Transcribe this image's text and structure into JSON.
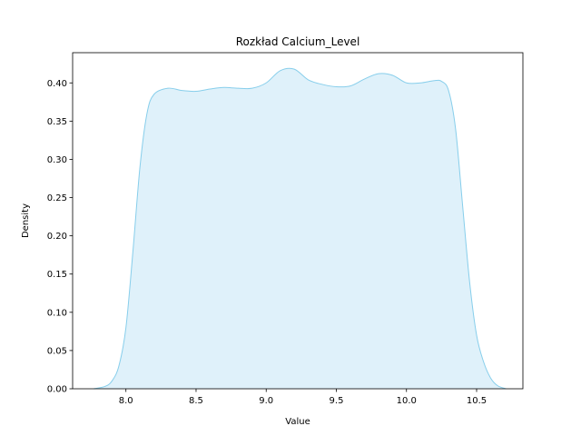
{
  "chart_data": {
    "type": "area",
    "title": "Rozkład Calcium_Level",
    "xlabel": "Value",
    "ylabel": "Density",
    "xlim": [
      7.62,
      10.83
    ],
    "ylim": [
      0,
      0.4395
    ],
    "x_ticks": [
      {
        "value": 8.0,
        "label": "8.0"
      },
      {
        "value": 8.5,
        "label": "8.5"
      },
      {
        "value": 9.0,
        "label": "9.0"
      },
      {
        "value": 9.5,
        "label": "9.5"
      },
      {
        "value": 10.0,
        "label": "10.0"
      },
      {
        "value": 10.5,
        "label": "10.5"
      }
    ],
    "y_ticks": [
      {
        "value": 0.0,
        "label": "0.00"
      },
      {
        "value": 0.05,
        "label": "0.05"
      },
      {
        "value": 0.1,
        "label": "0.10"
      },
      {
        "value": 0.15,
        "label": "0.15"
      },
      {
        "value": 0.2,
        "label": "0.20"
      },
      {
        "value": 0.25,
        "label": "0.25"
      },
      {
        "value": 0.3,
        "label": "0.30"
      },
      {
        "value": 0.35,
        "label": "0.35"
      },
      {
        "value": 0.4,
        "label": "0.40"
      }
    ],
    "grid": false,
    "series": [
      {
        "line_color": "#87ceeb",
        "fill_color": "#dff1fa",
        "x": [
          7.77,
          7.85,
          7.9,
          7.95,
          8.0,
          8.05,
          8.1,
          8.15,
          8.2,
          8.3,
          8.4,
          8.5,
          8.6,
          8.7,
          8.8,
          8.9,
          9.0,
          9.1,
          9.2,
          9.3,
          9.4,
          9.5,
          9.6,
          9.7,
          9.8,
          9.9,
          10.0,
          10.1,
          10.2,
          10.25,
          10.3,
          10.35,
          10.4,
          10.45,
          10.5,
          10.55,
          10.6,
          10.65,
          10.71
        ],
        "y": [
          0.0,
          0.003,
          0.01,
          0.03,
          0.08,
          0.18,
          0.29,
          0.36,
          0.385,
          0.393,
          0.39,
          0.389,
          0.392,
          0.394,
          0.393,
          0.393,
          0.4,
          0.416,
          0.418,
          0.404,
          0.398,
          0.395,
          0.396,
          0.405,
          0.412,
          0.41,
          0.4,
          0.4,
          0.403,
          0.402,
          0.39,
          0.34,
          0.24,
          0.14,
          0.07,
          0.035,
          0.014,
          0.004,
          0.0
        ]
      }
    ]
  }
}
